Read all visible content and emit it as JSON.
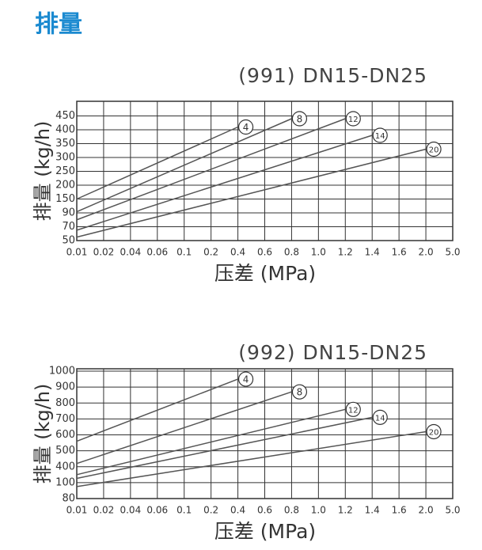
{
  "header": {
    "title": "排量"
  },
  "chart_data": [
    {
      "type": "line",
      "title": "(991) DN15-DN25",
      "x_label": "压差 (MPa)",
      "y_label": "排量 (kg/h)",
      "xlim": [
        0.01,
        5.0
      ],
      "ylim": [
        50,
        450
      ],
      "xticks": [
        0.01,
        0.02,
        0.04,
        0.06,
        0.1,
        0.2,
        0.4,
        0.6,
        0.8,
        {
          "value": 1,
          "label": "1.0"
        },
        1.2,
        1.4,
        1.6,
        {
          "value": 2,
          "label": "2.0"
        },
        {
          "value": 5,
          "label": "5.0"
        }
      ],
      "yticks": [
        50,
        70,
        90,
        150,
        200,
        250,
        300,
        350,
        400,
        450
      ],
      "series": [
        {
          "name": "4",
          "color": "#555555",
          "x": [
            0.01,
            0.4
          ],
          "values": [
            150,
            410
          ]
        },
        {
          "name": "8",
          "color": "#555555",
          "x": [
            0.01,
            0.8
          ],
          "values": [
            95,
            440
          ]
        },
        {
          "name": "12",
          "color": "#555555",
          "x": [
            0.01,
            1.2
          ],
          "values": [
            80,
            440
          ]
        },
        {
          "name": "14",
          "color": "#555555",
          "x": [
            0.01,
            1.4
          ],
          "values": [
            65,
            380
          ]
        },
        {
          "name": "20",
          "color": "#555555",
          "x": [
            0.01,
            2.0
          ],
          "values": [
            55,
            330
          ]
        }
      ]
    },
    {
      "type": "line",
      "title": "(992) DN15-DN25",
      "x_label": "压差 (MPa)",
      "y_label": "排量 (kg/h)",
      "xlim": [
        0.01,
        5.0
      ],
      "ylim": [
        80,
        1000
      ],
      "xticks": [
        0.01,
        0.02,
        0.04,
        0.06,
        0.1,
        0.2,
        0.4,
        0.6,
        0.8,
        {
          "value": 1,
          "label": "1.0"
        },
        1.2,
        1.4,
        1.6,
        {
          "value": 2,
          "label": "2.0"
        },
        {
          "value": 5,
          "label": "5.0"
        }
      ],
      "yticks": [
        80,
        100,
        400,
        500,
        600,
        700,
        800,
        900,
        1000
      ],
      "series": [
        {
          "name": "4",
          "color": "#555555",
          "x": [
            0.01,
            0.4
          ],
          "values": [
            560,
            950
          ]
        },
        {
          "name": "8",
          "color": "#555555",
          "x": [
            0.01,
            0.8
          ],
          "values": [
            420,
            870
          ]
        },
        {
          "name": "12",
          "color": "#555555",
          "x": [
            0.01,
            1.2
          ],
          "values": [
            250,
            760
          ]
        },
        {
          "name": "14",
          "color": "#555555",
          "x": [
            0.01,
            1.4
          ],
          "values": [
            180,
            710
          ]
        },
        {
          "name": "20",
          "color": "#555555",
          "x": [
            0.01,
            2.0
          ],
          "values": [
            95,
            620
          ]
        }
      ]
    }
  ]
}
